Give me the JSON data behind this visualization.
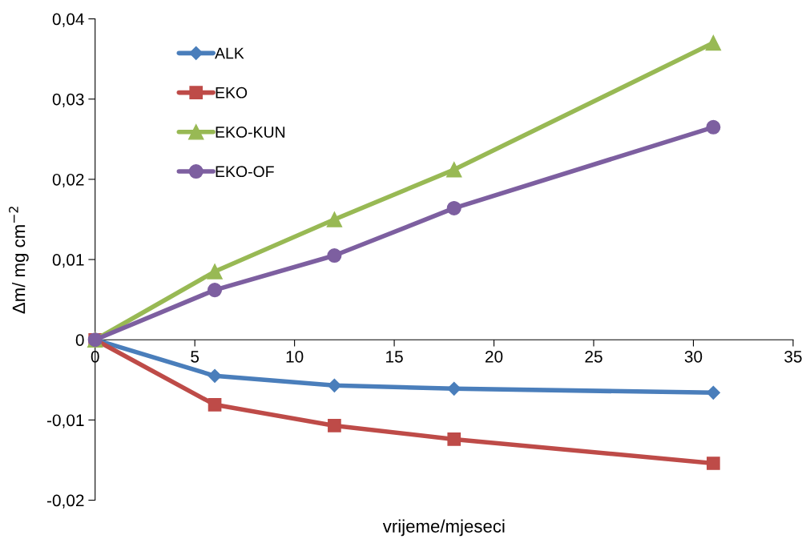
{
  "chart_data": {
    "type": "line",
    "xlabel": "vrijeme/mjeseci",
    "ylabel": "Δm/ mg cm$^{−2}$",
    "xlim": [
      0,
      35
    ],
    "xticks": [
      0,
      5,
      10,
      15,
      20,
      25,
      30,
      35
    ],
    "ylim": [
      -0.02,
      0.04
    ],
    "yticks": [
      {
        "value": -0.02,
        "label": "-0,02"
      },
      {
        "value": -0.01,
        "label": "-0,01"
      },
      {
        "value": 0,
        "label": "0"
      },
      {
        "value": 0.01,
        "label": "0,01"
      },
      {
        "value": 0.02,
        "label": "0,02"
      },
      {
        "value": 0.03,
        "label": "0,03"
      },
      {
        "value": 0.04,
        "label": "0,04"
      }
    ],
    "grid": false,
    "legend": "top left",
    "series": [
      {
        "name": "ALK",
        "color": "#4a7ebb",
        "marker": "diamond",
        "x": [
          0,
          6,
          12,
          18,
          31
        ],
        "values": [
          0,
          -0.0045,
          -0.0057,
          -0.0061,
          -0.0066
        ]
      },
      {
        "name": "EKO",
        "color": "#be4b48",
        "marker": "square",
        "x": [
          0,
          6,
          12,
          18,
          31
        ],
        "values": [
          0,
          -0.0081,
          -0.0107,
          -0.0124,
          -0.0154
        ]
      },
      {
        "name": "EKO-KUN",
        "color": "#98b954",
        "marker": "triangle",
        "x": [
          0,
          6,
          12,
          18,
          31
        ],
        "values": [
          0,
          0.0085,
          0.015,
          0.0212,
          0.037
        ]
      },
      {
        "name": "EKO-OF",
        "color": "#7d5fa0",
        "marker": "circle",
        "x": [
          0,
          6,
          12,
          18,
          31
        ],
        "values": [
          0,
          0.0062,
          0.0105,
          0.0164,
          0.0265
        ]
      }
    ]
  }
}
